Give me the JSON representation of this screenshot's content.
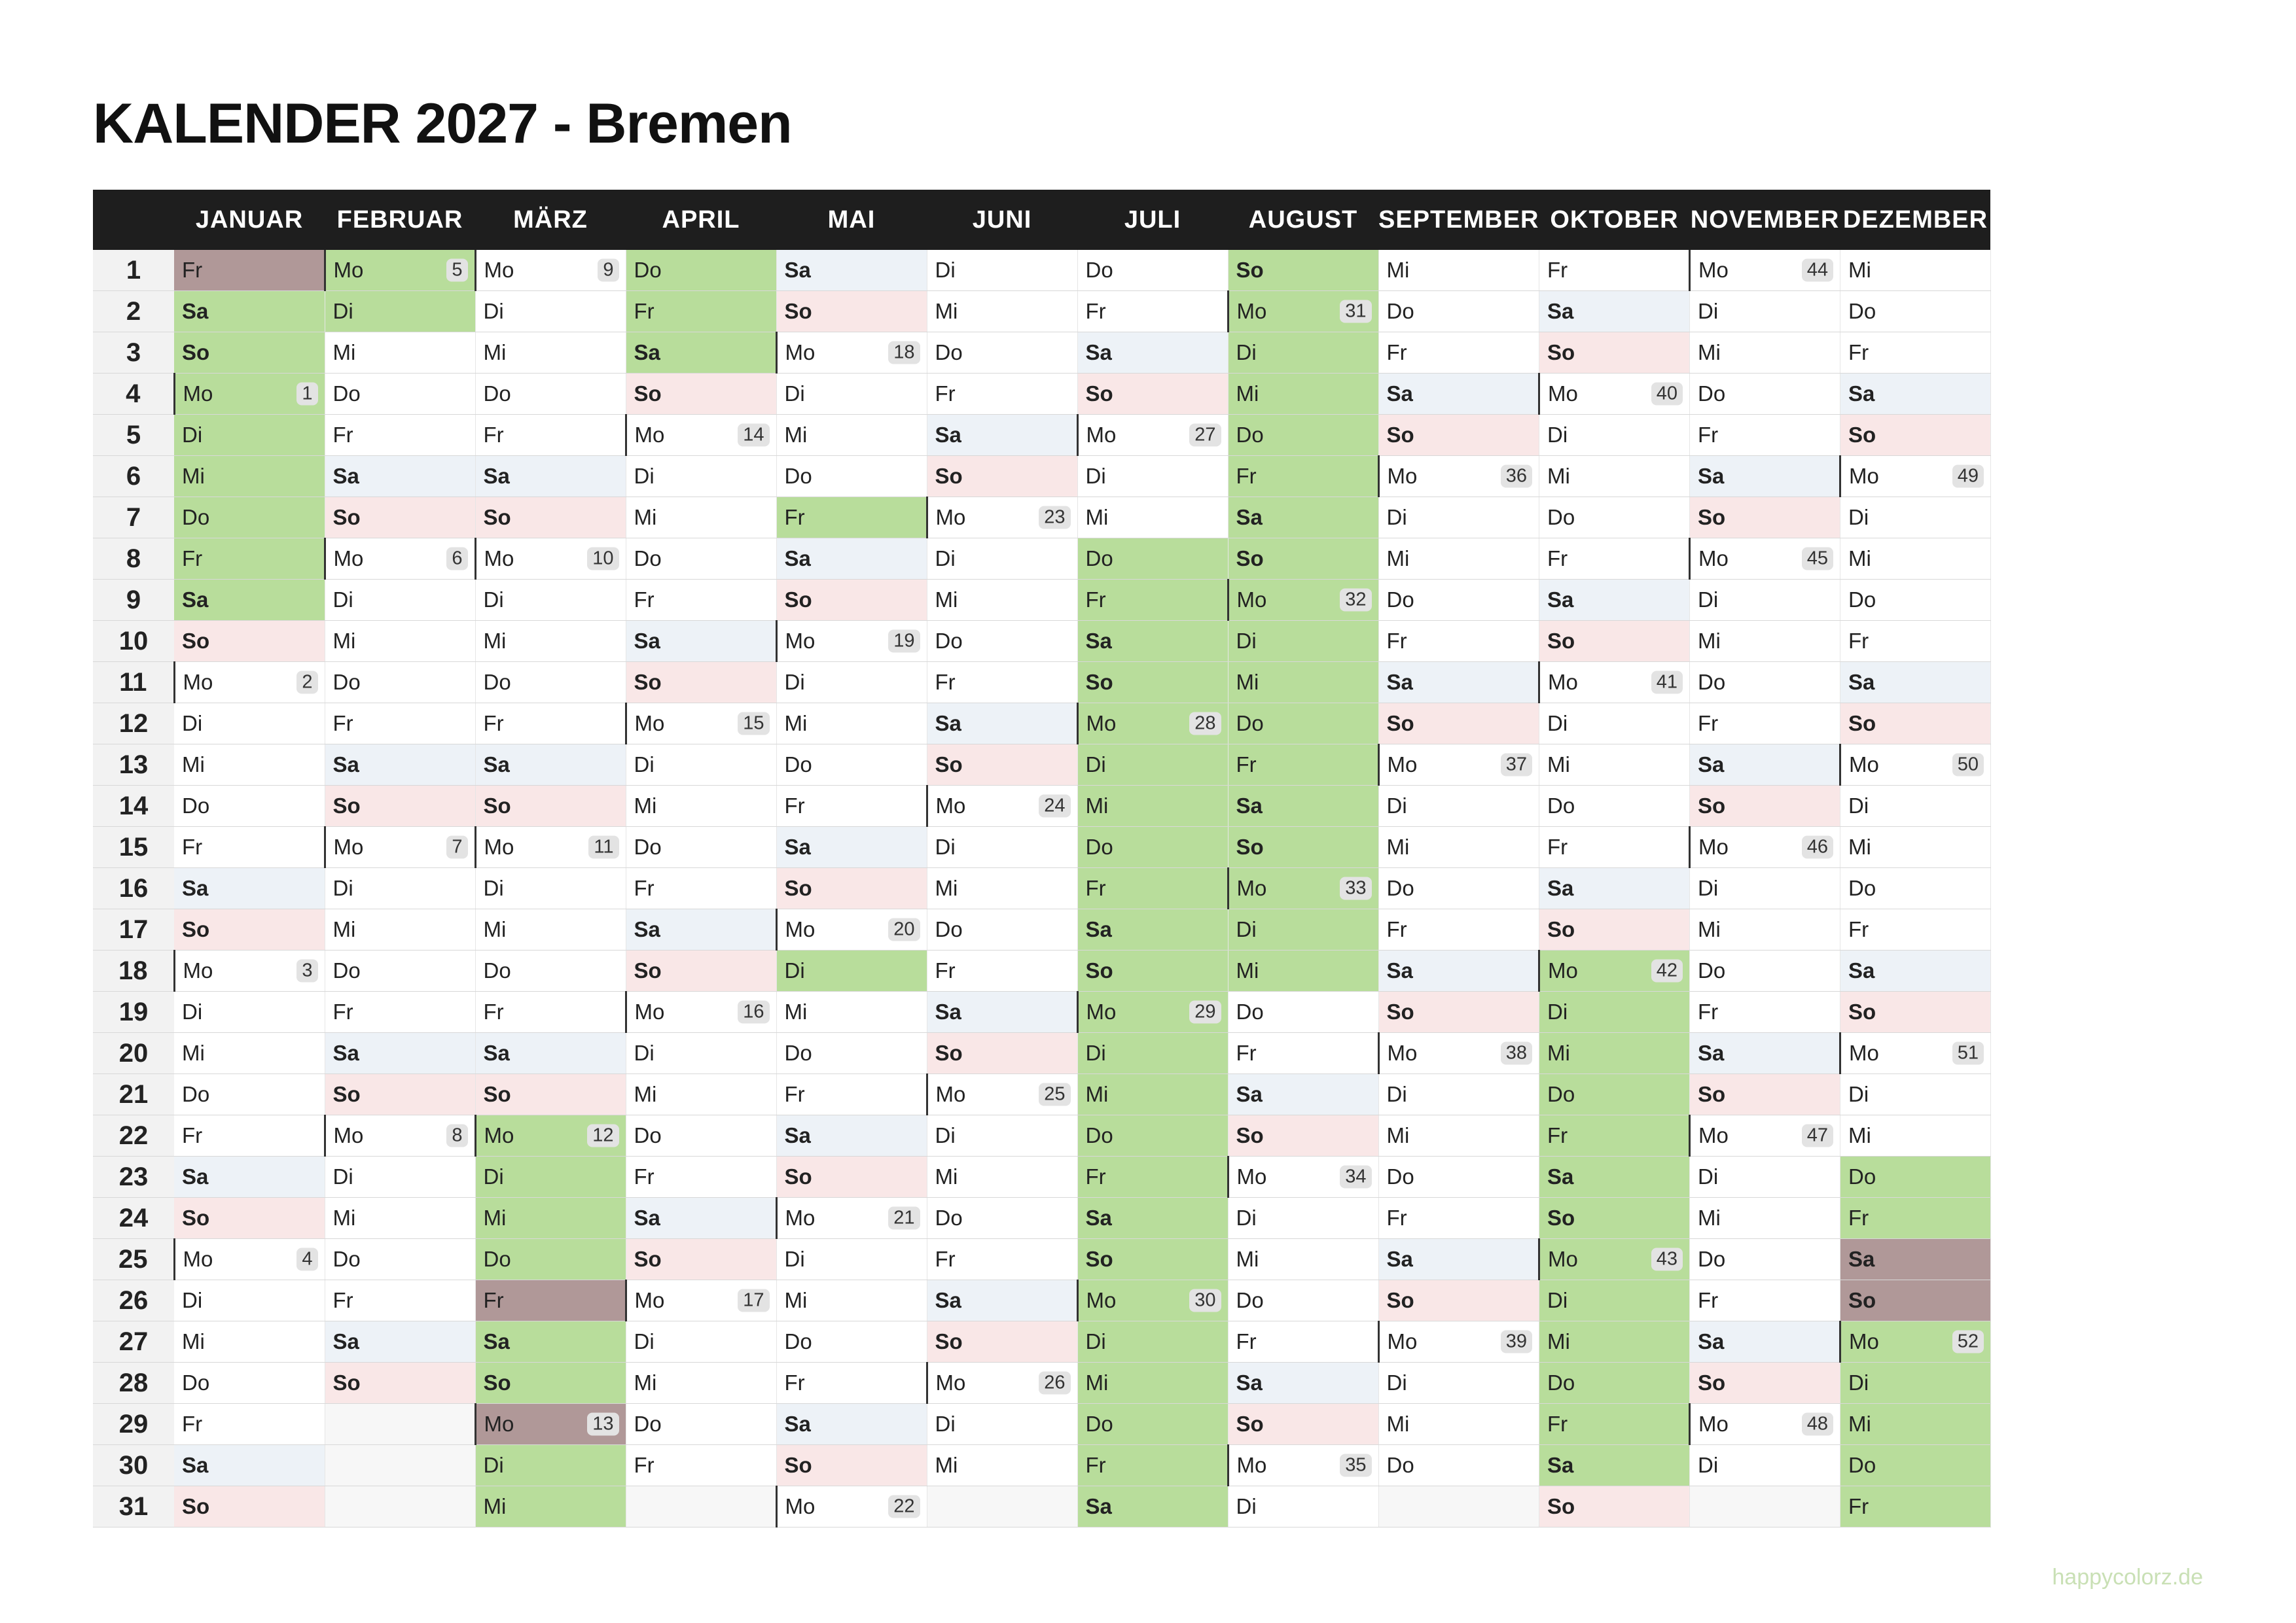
{
  "title": "KALENDER 2027 - Bremen",
  "footer": "happycolorz.de",
  "months": [
    {
      "name": "JANUAR",
      "start": 5,
      "days": 31,
      "first_kw": 1
    },
    {
      "name": "FEBRUAR",
      "start": 1,
      "days": 28,
      "first_kw": 5
    },
    {
      "name": "MÄRZ",
      "start": 1,
      "days": 31,
      "first_kw": 9
    },
    {
      "name": "APRIL",
      "start": 4,
      "days": 30,
      "first_kw": 14
    },
    {
      "name": "MAI",
      "start": 6,
      "days": 31,
      "first_kw": 18
    },
    {
      "name": "JUNI",
      "start": 2,
      "days": 30,
      "first_kw": 23
    },
    {
      "name": "JULI",
      "start": 4,
      "days": 31,
      "first_kw": 27
    },
    {
      "name": "AUGUST",
      "start": 0,
      "days": 31,
      "first_kw": 31
    },
    {
      "name": "SEPTEMBER",
      "start": 3,
      "days": 30,
      "first_kw": 36
    },
    {
      "name": "OKTOBER",
      "start": 5,
      "days": 31,
      "first_kw": 40
    },
    {
      "name": "NOVEMBER",
      "start": 1,
      "days": 30,
      "first_kw": 44
    },
    {
      "name": "DEZEMBER",
      "start": 3,
      "days": 31,
      "first_kw": 49
    }
  ],
  "weekday_labels": [
    "So",
    "Mo",
    "Di",
    "Mi",
    "Do",
    "Fr",
    "Sa"
  ],
  "school_holidays": {
    "0": [
      [
        2,
        9
      ]
    ],
    "1": [
      [
        1,
        2
      ]
    ],
    "2": [
      [
        22,
        31
      ]
    ],
    "3": [
      [
        1,
        3
      ]
    ],
    "4": [
      [
        7,
        7
      ],
      [
        18,
        18
      ]
    ],
    "6": [
      [
        8,
        31
      ]
    ],
    "7": [
      [
        1,
        18
      ]
    ],
    "9": [
      [
        18,
        30
      ]
    ],
    "11": [
      [
        23,
        31
      ]
    ]
  },
  "public_holidays": {
    "0": [
      1
    ],
    "2": [
      26,
      29
    ],
    "11": [
      25,
      26
    ]
  },
  "colors": {
    "header_bg": "#1e1e1e",
    "saturday": "#edf2f7",
    "sunday": "#f9e7e7",
    "school_holiday": "#b8dd9b",
    "public_holiday": "#b09898",
    "footer": "#c9e0b5"
  }
}
